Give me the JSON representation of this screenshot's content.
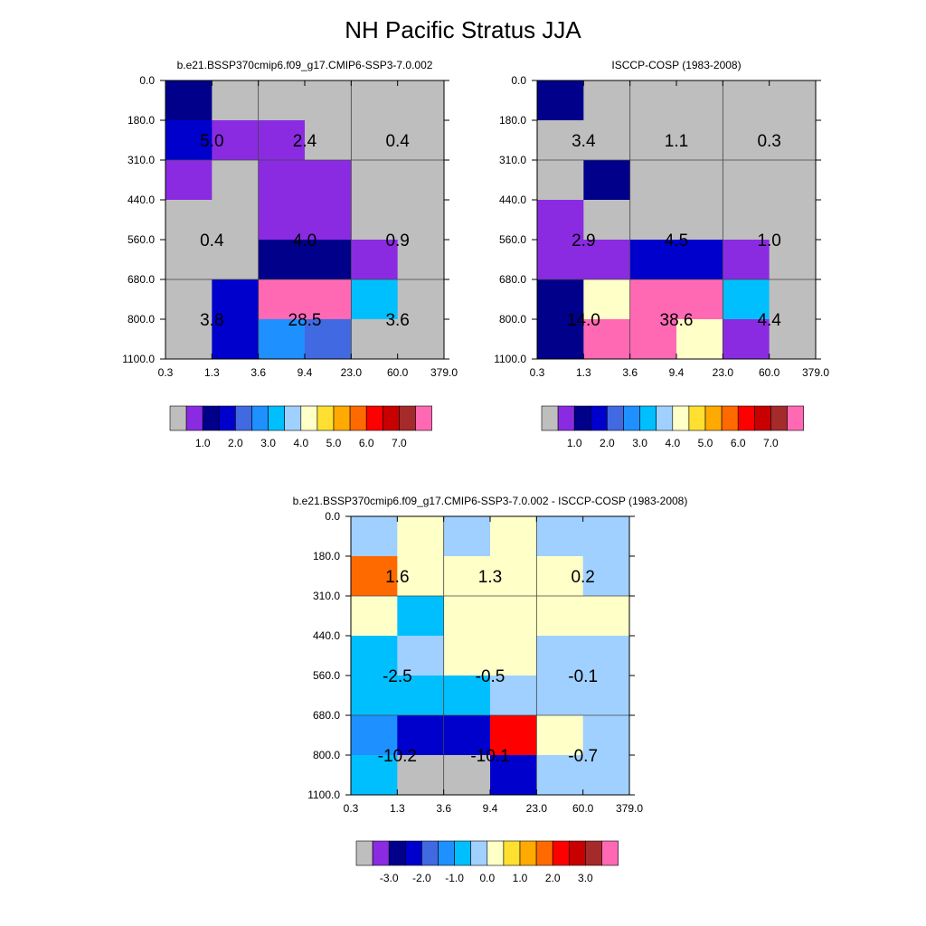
{
  "title": "NH Pacific Stratus JJA",
  "palette": {
    "gray": "#bebebe",
    "purple": "#8a2be2",
    "navy": "#00008b",
    "blue": "#0000cd",
    "royal": "#4169e1",
    "dodger": "#1e90ff",
    "deepsky": "#00bfff",
    "lightblue": "#a0d0ff",
    "cream": "#ffffc8",
    "yellow": "#ffe030",
    "gold": "#ffaa00",
    "orange": "#ff6a00",
    "red": "#ff0000",
    "darkred": "#c80000",
    "brown": "#a52a2a",
    "pink": "#ff69b4"
  },
  "colorbar_order": [
    "gray",
    "purple",
    "navy",
    "blue",
    "royal",
    "dodger",
    "deepsky",
    "lightblue",
    "cream",
    "yellow",
    "gold",
    "orange",
    "red",
    "darkred",
    "brown",
    "pink"
  ],
  "chart_data": [
    {
      "type": "heatmap",
      "title": "b.e21.BSSP370cmip6.f09_g17.CMIP6-SSP3-7.0.002",
      "x_tick_labels": [
        "0.3",
        "1.3",
        "3.6",
        "9.4",
        "23.0",
        "60.0",
        "379.0"
      ],
      "y_tick_labels": [
        "0.0",
        "180.0",
        "310.0",
        "440.0",
        "560.0",
        "680.0",
        "800.0",
        "1100.0"
      ],
      "cell_colors": [
        [
          "navy",
          "gray",
          "gray",
          "gray",
          "gray",
          "gray"
        ],
        [
          "blue",
          "purple",
          "purple",
          "gray",
          "gray",
          "gray"
        ],
        [
          "purple",
          "gray",
          "purple",
          "purple",
          "gray",
          "gray"
        ],
        [
          "gray",
          "gray",
          "purple",
          "purple",
          "gray",
          "gray"
        ],
        [
          "gray",
          "gray",
          "navy",
          "navy",
          "purple",
          "gray"
        ],
        [
          "gray",
          "blue",
          "pink",
          "pink",
          "deepsky",
          "gray"
        ],
        [
          "gray",
          "blue",
          "dodger",
          "royal",
          "gray",
          "gray"
        ]
      ],
      "box_values": [
        [
          "5.0",
          "2.4",
          "0.4"
        ],
        [
          "0.4",
          "4.0",
          "0.9"
        ],
        [
          "3.8",
          "28.5",
          "3.6"
        ]
      ],
      "colorbar_labels": [
        "1.0",
        "2.0",
        "3.0",
        "4.0",
        "5.0",
        "6.0",
        "7.0"
      ]
    },
    {
      "type": "heatmap",
      "title": "ISCCP-COSP (1983-2008)",
      "x_tick_labels": [
        "0.3",
        "1.3",
        "3.6",
        "9.4",
        "23.0",
        "60.0",
        "379.0"
      ],
      "y_tick_labels": [
        "0.0",
        "180.0",
        "310.0",
        "440.0",
        "560.0",
        "680.0",
        "800.0",
        "1100.0"
      ],
      "cell_colors": [
        [
          "navy",
          "gray",
          "gray",
          "gray",
          "gray",
          "gray"
        ],
        [
          "gray",
          "gray",
          "gray",
          "gray",
          "gray",
          "gray"
        ],
        [
          "gray",
          "navy",
          "gray",
          "gray",
          "gray",
          "gray"
        ],
        [
          "purple",
          "gray",
          "gray",
          "gray",
          "gray",
          "gray"
        ],
        [
          "purple",
          "purple",
          "blue",
          "blue",
          "purple",
          "gray"
        ],
        [
          "navy",
          "cream",
          "pink",
          "pink",
          "deepsky",
          "gray"
        ],
        [
          "navy",
          "pink",
          "pink",
          "cream",
          "purple",
          "gray"
        ]
      ],
      "box_values": [
        [
          "3.4",
          "1.1",
          "0.3"
        ],
        [
          "2.9",
          "4.5",
          "1.0"
        ],
        [
          "14.0",
          "38.6",
          "4.4"
        ]
      ],
      "colorbar_labels": [
        "1.0",
        "2.0",
        "3.0",
        "4.0",
        "5.0",
        "6.0",
        "7.0"
      ]
    },
    {
      "type": "heatmap",
      "title": "b.e21.BSSP370cmip6.f09_g17.CMIP6-SSP3-7.0.002 - ISCCP-COSP (1983-2008)",
      "x_tick_labels": [
        "0.3",
        "1.3",
        "3.6",
        "9.4",
        "23.0",
        "60.0",
        "379.0"
      ],
      "y_tick_labels": [
        "0.0",
        "180.0",
        "310.0",
        "440.0",
        "560.0",
        "680.0",
        "800.0",
        "1100.0"
      ],
      "cell_colors": [
        [
          "lightblue",
          "cream",
          "lightblue",
          "cream",
          "lightblue",
          "lightblue"
        ],
        [
          "orange",
          "cream",
          "cream",
          "cream",
          "cream",
          "lightblue"
        ],
        [
          "cream",
          "deepsky",
          "cream",
          "cream",
          "cream",
          "cream"
        ],
        [
          "deepsky",
          "lightblue",
          "cream",
          "cream",
          "lightblue",
          "lightblue"
        ],
        [
          "deepsky",
          "deepsky",
          "deepsky",
          "lightblue",
          "lightblue",
          "lightblue"
        ],
        [
          "dodger",
          "blue",
          "blue",
          "red",
          "cream",
          "lightblue"
        ],
        [
          "deepsky",
          "gray",
          "gray",
          "blue",
          "lightblue",
          "lightblue"
        ]
      ],
      "box_values": [
        [
          "1.6",
          "1.3",
          "0.2"
        ],
        [
          "-2.5",
          "-0.5",
          "-0.1"
        ],
        [
          "-10.2",
          "-10.1",
          "-0.7"
        ]
      ],
      "colorbar_labels": [
        "-3.0",
        "-2.0",
        "-1.0",
        "0.0",
        "1.0",
        "2.0",
        "3.0"
      ]
    }
  ]
}
